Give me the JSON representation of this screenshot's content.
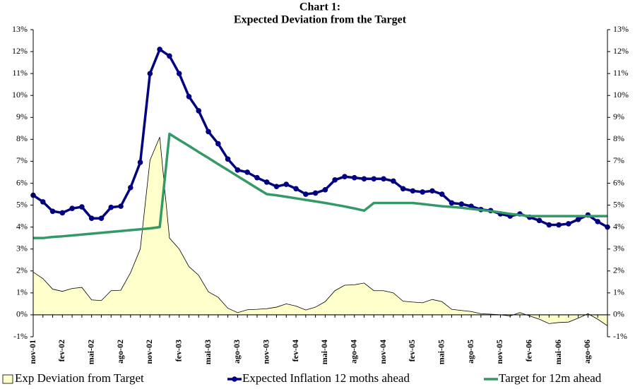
{
  "chart_data": {
    "type": "line",
    "title": "Chart 1:",
    "subtitle": "Expected Deviation from the Target",
    "categories": [
      "nov-01",
      null,
      null,
      "fev-02",
      null,
      null,
      "mai-02",
      null,
      null,
      "ago-02",
      null,
      null,
      "nov-02",
      null,
      null,
      "fev-03",
      null,
      null,
      "mai-03",
      null,
      null,
      "ago-03",
      null,
      null,
      "nov-03",
      null,
      null,
      "fev-04",
      null,
      null,
      "mai-04",
      null,
      null,
      "ago-04",
      null,
      null,
      "nov-04",
      null,
      null,
      "fev-05",
      null,
      null,
      "mai-05",
      null,
      null,
      "ago-05",
      null,
      null,
      "nov-05",
      null,
      null,
      "fev-06",
      null,
      null,
      "mai-06",
      null,
      null,
      "ago-06",
      null,
      null
    ],
    "series": [
      {
        "name": "Exp Deviation from Target",
        "type": "area",
        "color": "#ffffcc",
        "values": [
          1.95,
          1.65,
          1.17,
          1.07,
          1.2,
          1.25,
          0.68,
          0.65,
          1.1,
          1.12,
          1.92,
          3.0,
          7.05,
          8.1,
          3.5,
          3.0,
          2.2,
          1.8,
          1.05,
          0.8,
          0.3,
          0.1,
          0.23,
          0.25,
          0.28,
          0.35,
          0.5,
          0.4,
          0.22,
          0.35,
          0.6,
          1.1,
          1.35,
          1.37,
          1.45,
          1.1,
          1.1,
          1.0,
          0.62,
          0.58,
          0.55,
          0.7,
          0.6,
          0.25,
          0.2,
          0.15,
          0.05,
          0.03,
          0.0,
          -0.05,
          0.1,
          -0.05,
          -0.2,
          -0.4,
          -0.35,
          -0.33,
          -0.15,
          0.05,
          -0.2,
          -0.5
        ]
      },
      {
        "name": "Expected Inflation 12 moths ahead",
        "type": "line",
        "marker": true,
        "color": "#000080",
        "values": [
          5.45,
          5.15,
          4.72,
          4.65,
          4.85,
          4.92,
          4.4,
          4.4,
          4.9,
          4.95,
          5.8,
          6.95,
          11.0,
          12.1,
          11.8,
          11.0,
          9.95,
          9.3,
          8.35,
          7.8,
          7.1,
          6.6,
          6.5,
          6.25,
          6.05,
          5.85,
          5.95,
          5.75,
          5.5,
          5.55,
          5.7,
          6.15,
          6.3,
          6.25,
          6.2,
          6.2,
          6.2,
          6.1,
          5.75,
          5.65,
          5.6,
          5.65,
          5.5,
          5.1,
          5.05,
          4.95,
          4.8,
          4.75,
          4.6,
          4.5,
          4.6,
          4.45,
          4.3,
          4.1,
          4.1,
          4.15,
          4.35,
          4.55,
          4.25,
          4.0
        ]
      },
      {
        "name": "Target for 12m ahead",
        "type": "line",
        "marker": false,
        "color": "#339966",
        "values": [
          3.5,
          3.5,
          3.55,
          3.58,
          3.62,
          3.66,
          3.7,
          3.74,
          3.78,
          3.82,
          3.86,
          3.9,
          3.94,
          4.0,
          8.25,
          7.97,
          7.7,
          7.42,
          7.15,
          6.87,
          6.6,
          6.32,
          6.05,
          5.77,
          5.5,
          5.45,
          5.38,
          5.31,
          5.24,
          5.17,
          5.1,
          5.02,
          4.94,
          4.85,
          4.75,
          5.1,
          5.1,
          5.1,
          5.1,
          5.1,
          5.05,
          5.0,
          4.95,
          4.92,
          4.88,
          4.83,
          4.78,
          4.73,
          4.67,
          4.6,
          4.55,
          4.5,
          4.5,
          4.5,
          4.5,
          4.5,
          4.5,
          4.5,
          4.5,
          4.5
        ]
      }
    ],
    "ylim": [
      -1,
      13
    ],
    "yticks": [
      {
        "value": -1,
        "label": "-1%"
      },
      {
        "value": 0,
        "label": "0%"
      },
      {
        "value": 1,
        "label": "1%"
      },
      {
        "value": 2,
        "label": "2%"
      },
      {
        "value": 3,
        "label": "3%"
      },
      {
        "value": 4,
        "label": "4%"
      },
      {
        "value": 5,
        "label": "5%"
      },
      {
        "value": 6,
        "label": "6%"
      },
      {
        "value": 7,
        "label": "7%"
      },
      {
        "value": 8,
        "label": "8%"
      },
      {
        "value": 9,
        "label": "9%"
      },
      {
        "value": 10,
        "label": "10%"
      },
      {
        "value": 11,
        "label": "11%"
      },
      {
        "value": 12,
        "label": "12%"
      },
      {
        "value": 13,
        "label": "13%"
      }
    ],
    "y2lim": [
      -1,
      13
    ],
    "y2ticks": [
      {
        "value": -1,
        "label": "-1%"
      },
      {
        "value": 0,
        "label": "0%"
      },
      {
        "value": 1,
        "label": "1%"
      },
      {
        "value": 2,
        "label": "2%"
      },
      {
        "value": 3,
        "label": "3%"
      },
      {
        "value": 4,
        "label": "4%"
      },
      {
        "value": 5,
        "label": "5%"
      },
      {
        "value": 6,
        "label": "6%"
      },
      {
        "value": 7,
        "label": "7%"
      },
      {
        "value": 8,
        "label": "8%"
      },
      {
        "value": 9,
        "label": "9%"
      },
      {
        "value": 10,
        "label": "10%"
      },
      {
        "value": 11,
        "label": "11%"
      },
      {
        "value": 12,
        "label": "12%"
      },
      {
        "value": 13,
        "label": "13%"
      }
    ],
    "grid": false,
    "legend": "bottom"
  }
}
